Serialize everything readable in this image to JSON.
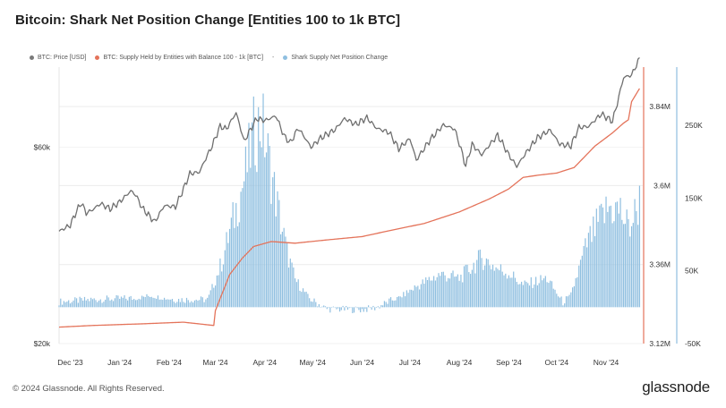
{
  "title": "Bitcoin: Shark Net Position Change [Entities 100 to 1k BTC]",
  "legend": [
    {
      "label": "BTC: Price [USD]",
      "color": "#7a7a7a"
    },
    {
      "label": "BTC: Supply Held by Entities with Balance 100 - 1k [BTC]",
      "color": "#e4735a"
    },
    {
      "label": "Shark Supply Net Position Change",
      "color": "#8fbfe0"
    }
  ],
  "legend_separator": "-",
  "footer": "© 2024 Glassnode. All Rights Reserved.",
  "brand": "glassnode",
  "colors": {
    "price": "#6f6f6f",
    "supply": "#e4735a",
    "bars": "#8fbfe0",
    "bar_axis": "#8fbfe0",
    "supply_axis": "#e4735a"
  },
  "chart_data": {
    "type": "bar",
    "x_axis": {
      "type": "date",
      "range": [
        "2023-11-24",
        "2024-11-24"
      ],
      "tick_labels": [
        "Dec '23",
        "Jan '24",
        "Feb '24",
        "Mar '24",
        "Apr '24",
        "May '24",
        "Jun '24",
        "Jul '24",
        "Aug '24",
        "Sep '24",
        "Oct '24",
        "Nov '24"
      ],
      "tick_dates": [
        "2023-12-01",
        "2024-01-01",
        "2024-02-01",
        "2024-03-01",
        "2024-04-01",
        "2024-05-01",
        "2024-06-01",
        "2024-07-01",
        "2024-08-01",
        "2024-09-01",
        "2024-10-01",
        "2024-11-01"
      ]
    },
    "y_axes": {
      "price": {
        "scale": "log",
        "range": [
          20000,
          94000
        ],
        "tick_labels": [
          "$20k",
          "$60k"
        ],
        "tick_values": [
          20000,
          60000
        ]
      },
      "supply": {
        "range": [
          3120000,
          3960000
        ],
        "tick_labels": [
          "3.12M",
          "3.36M",
          "3.6M",
          "3.84M"
        ],
        "tick_values": [
          3120000,
          3360000,
          3600000,
          3840000
        ]
      },
      "net_change": {
        "range": [
          -50000,
          330000
        ],
        "tick_labels": [
          "-50K",
          "50K",
          "150K",
          "250K"
        ],
        "tick_values": [
          -50000,
          50000,
          150000,
          250000
        ]
      }
    },
    "grid": true,
    "series": [
      {
        "name": "BTC: Price [USD]",
        "type": "line",
        "axis": "price",
        "x": [
          "2023-11-24",
          "2023-12-01",
          "2023-12-05",
          "2023-12-08",
          "2023-12-11",
          "2023-12-15",
          "2023-12-20",
          "2023-12-26",
          "2024-01-01",
          "2024-01-08",
          "2024-01-11",
          "2024-01-15",
          "2024-01-18",
          "2024-01-23",
          "2024-01-29",
          "2024-02-05",
          "2024-02-10",
          "2024-02-14",
          "2024-02-20",
          "2024-02-28",
          "2024-03-04",
          "2024-03-08",
          "2024-03-14",
          "2024-03-19",
          "2024-03-27",
          "2024-04-01",
          "2024-04-08",
          "2024-04-13",
          "2024-04-17",
          "2024-04-22",
          "2024-04-30",
          "2024-05-06",
          "2024-05-15",
          "2024-05-21",
          "2024-05-28",
          "2024-06-04",
          "2024-06-10",
          "2024-06-18",
          "2024-06-24",
          "2024-07-01",
          "2024-07-05",
          "2024-07-14",
          "2024-07-22",
          "2024-07-29",
          "2024-08-05",
          "2024-08-09",
          "2024-08-15",
          "2024-08-25",
          "2024-09-01",
          "2024-09-06",
          "2024-09-12",
          "2024-09-19",
          "2024-09-27",
          "2024-10-03",
          "2024-10-10",
          "2024-10-15",
          "2024-10-21",
          "2024-10-29",
          "2024-11-05",
          "2024-11-08",
          "2024-11-12",
          "2024-11-17",
          "2024-11-22"
        ],
        "y": [
          37500,
          38800,
          42000,
          44000,
          41500,
          42300,
          43800,
          42500,
          44200,
          47000,
          46000,
          42800,
          41500,
          39500,
          43300,
          43000,
          47500,
          51800,
          52200,
          60500,
          67500,
          66500,
          72800,
          62000,
          70500,
          69700,
          71500,
          64000,
          61500,
          66800,
          60000,
          63200,
          66200,
          70500,
          68200,
          70800,
          66800,
          65200,
          59500,
          63000,
          55800,
          62800,
          68000,
          66500,
          54000,
          61000,
          57500,
          64200,
          57500,
          53900,
          58300,
          63300,
          66100,
          61000,
          60500,
          67100,
          67400,
          72300,
          69400,
          76600,
          88700,
          89900,
          98500
        ]
      },
      {
        "name": "BTC: Supply Held by Entities with Balance 100 - 1k [BTC]",
        "type": "line",
        "axis": "supply",
        "x": [
          "2023-11-24",
          "2023-12-15",
          "2024-01-15",
          "2024-02-10",
          "2024-02-29",
          "2024-03-01",
          "2024-03-10",
          "2024-03-18",
          "2024-03-25",
          "2024-04-05",
          "2024-04-20",
          "2024-05-10",
          "2024-06-01",
          "2024-06-20",
          "2024-07-10",
          "2024-08-01",
          "2024-08-20",
          "2024-09-01",
          "2024-09-10",
          "2024-09-20",
          "2024-10-01",
          "2024-10-12",
          "2024-10-25",
          "2024-11-05",
          "2024-11-12",
          "2024-11-15",
          "2024-11-17",
          "2024-11-22"
        ],
        "y": [
          3170000,
          3175000,
          3180000,
          3185000,
          3175000,
          3220000,
          3330000,
          3380000,
          3415000,
          3430000,
          3425000,
          3435000,
          3445000,
          3465000,
          3485000,
          3520000,
          3560000,
          3590000,
          3625000,
          3632000,
          3638000,
          3655000,
          3720000,
          3760000,
          3790000,
          3800000,
          3855000,
          3895000
        ]
      },
      {
        "name": "Shark Supply Net Position Change",
        "type": "bar",
        "axis": "net_change",
        "x": [
          "2023-11-24",
          "2023-12-15",
          "2024-01-10",
          "2024-01-20",
          "2024-02-05",
          "2024-02-25",
          "2024-03-01",
          "2024-03-05",
          "2024-03-10",
          "2024-03-15",
          "2024-03-20",
          "2024-03-25",
          "2024-03-30",
          "2024-04-05",
          "2024-04-10",
          "2024-04-15",
          "2024-04-20",
          "2024-04-30",
          "2024-05-10",
          "2024-06-01",
          "2024-06-10",
          "2024-06-25",
          "2024-07-05",
          "2024-07-20",
          "2024-08-01",
          "2024-08-15",
          "2024-08-25",
          "2024-09-01",
          "2024-09-10",
          "2024-09-25",
          "2024-10-05",
          "2024-10-10",
          "2024-10-20",
          "2024-10-28",
          "2024-11-03",
          "2024-11-10",
          "2024-11-15",
          "2024-11-20",
          "2024-11-22"
        ],
        "y": [
          7000,
          10000,
          12000,
          17000,
          10000,
          10000,
          40000,
          65000,
          110000,
          150000,
          195000,
          250000,
          270000,
          195000,
          135000,
          80000,
          40000,
          10000,
          -3000,
          -4000,
          -1000,
          15000,
          30000,
          48000,
          42000,
          72000,
          56000,
          50000,
          32000,
          42000,
          6000,
          18000,
          92000,
          125000,
          145000,
          140000,
          115000,
          140000,
          155000
        ]
      }
    ]
  }
}
